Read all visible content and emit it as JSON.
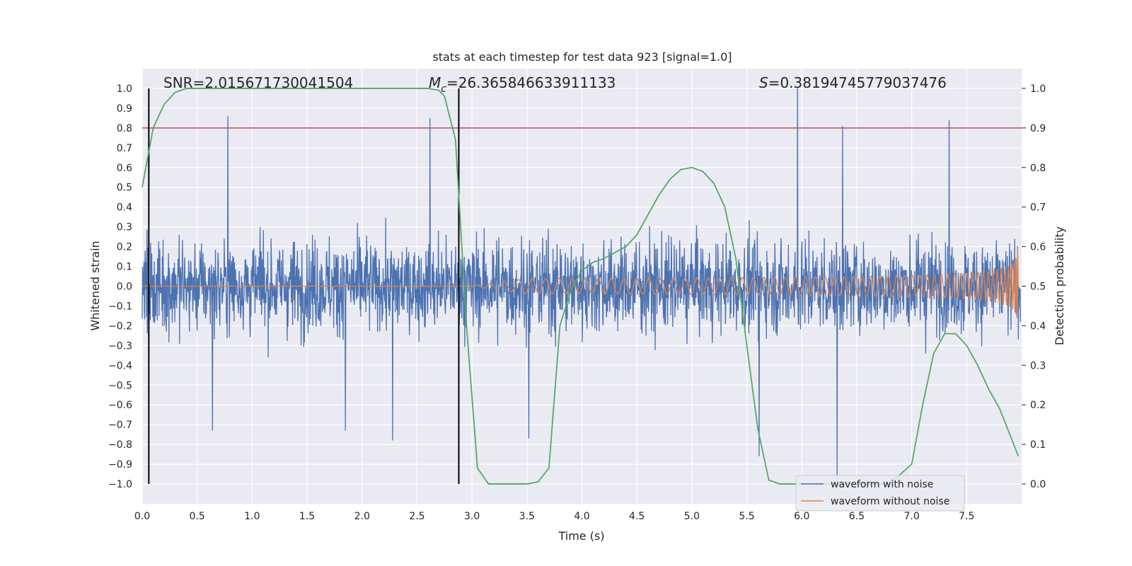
{
  "chart_data": {
    "type": "line",
    "title": "stats at each timestep for test data 923 [signal=1.0]",
    "xlabel": "Time (s)",
    "ylabel": "Whitened strain",
    "y2label": "Detection probability",
    "xlim": [
      0.0,
      8.0
    ],
    "ylim": [
      -1.1,
      1.1
    ],
    "y2lim": [
      -0.05,
      1.05
    ],
    "grid": true,
    "xticks": [
      "0.0",
      "0.5",
      "1.0",
      "1.5",
      "2.0",
      "2.5",
      "3.0",
      "3.5",
      "4.0",
      "4.5",
      "5.0",
      "5.5",
      "6.0",
      "6.5",
      "7.0",
      "7.5"
    ],
    "yticks": [
      "1.0",
      "0.9",
      "0.8",
      "0.7",
      "0.6",
      "0.5",
      "0.4",
      "0.3",
      "0.2",
      "0.1",
      "0.0",
      "−0.1",
      "−0.2",
      "−0.3",
      "−0.4",
      "−0.5",
      "−0.6",
      "−0.7",
      "−0.8",
      "−0.9",
      "−1.0"
    ],
    "y2ticks": [
      "1.0",
      "0.9",
      "0.8",
      "0.7",
      "0.6",
      "0.5",
      "0.4",
      "0.3",
      "0.2",
      "0.1",
      "0.0"
    ],
    "annotations": {
      "snr": "SNR=2.015671730041504",
      "mc_symbol": "M",
      "mc_sub": "c",
      "mc_value": "=26.365846633911133",
      "s_symbol": "S",
      "s_value": "=0.38194745779037476"
    },
    "threshold": {
      "y2": 0.9,
      "color": "#c44e52"
    },
    "markers": {
      "x": [
        0.06,
        2.88
      ],
      "color": "#000000"
    },
    "series": [
      {
        "name": "waveform with noise",
        "color": "#4c72b0",
        "axis": "left",
        "noise_sigma": 0.16,
        "spikes": [
          [
            0.78,
            0.86
          ],
          [
            2.62,
            0.85
          ],
          [
            5.97,
            1.0
          ],
          [
            6.38,
            0.81
          ],
          [
            7.35,
            0.84
          ],
          [
            3.52,
            -0.77
          ],
          [
            6.33,
            -0.97
          ],
          [
            5.62,
            -0.86
          ],
          [
            2.28,
            -0.78
          ],
          [
            0.64,
            -0.73
          ],
          [
            1.85,
            -0.73
          ]
        ]
      },
      {
        "name": "waveform without noise",
        "color": "#dd8452",
        "axis": "left",
        "chirp": {
          "t_merger": 7.97,
          "peak_amplitude": 0.22,
          "onset": 3.0
        }
      },
      {
        "name": "detection probability",
        "color": "#55a868",
        "axis": "right",
        "x": [
          0.0,
          0.1,
          0.2,
          0.3,
          0.4,
          0.5,
          1.0,
          1.5,
          2.0,
          2.5,
          2.6,
          2.7,
          2.75,
          2.85,
          2.95,
          3.05,
          3.15,
          3.3,
          3.5,
          3.6,
          3.7,
          3.8,
          3.9,
          4.0,
          4.1,
          4.2,
          4.3,
          4.4,
          4.5,
          4.6,
          4.7,
          4.8,
          4.9,
          5.0,
          5.1,
          5.2,
          5.3,
          5.4,
          5.5,
          5.6,
          5.7,
          5.8,
          6.0,
          6.5,
          6.8,
          7.0,
          7.1,
          7.2,
          7.3,
          7.4,
          7.5,
          7.6,
          7.7,
          7.8,
          7.9,
          7.97
        ],
        "y": [
          0.75,
          0.9,
          0.96,
          0.99,
          1.0,
          1.0,
          1.0,
          1.0,
          1.0,
          1.0,
          1.0,
          0.995,
          0.98,
          0.87,
          0.4,
          0.04,
          0.0,
          0.0,
          0.0,
          0.005,
          0.04,
          0.4,
          0.49,
          0.54,
          0.56,
          0.57,
          0.585,
          0.6,
          0.63,
          0.68,
          0.73,
          0.77,
          0.795,
          0.8,
          0.79,
          0.76,
          0.7,
          0.57,
          0.35,
          0.14,
          0.01,
          0.0,
          0.0,
          0.0,
          0.0,
          0.05,
          0.2,
          0.33,
          0.38,
          0.38,
          0.35,
          0.3,
          0.24,
          0.19,
          0.12,
          0.07
        ]
      }
    ],
    "legend": {
      "location": "lower-right",
      "entries": [
        "waveform with noise",
        "waveform without noise"
      ]
    }
  }
}
